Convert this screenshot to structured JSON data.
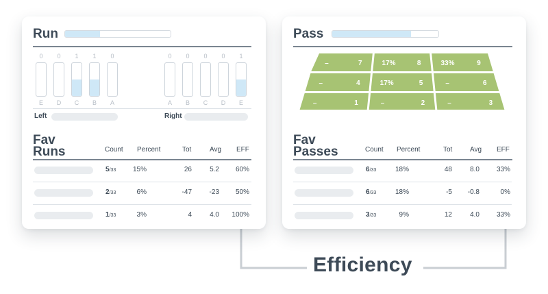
{
  "run": {
    "title": "Run",
    "bar_fill": 0.33,
    "gaps_left": [
      {
        "label": "E",
        "value": "0",
        "fill": 0
      },
      {
        "label": "D",
        "value": "0",
        "fill": 0
      },
      {
        "label": "C",
        "value": "1",
        "fill": 0.5
      },
      {
        "label": "B",
        "value": "1",
        "fill": 0.5
      },
      {
        "label": "A",
        "value": "0",
        "fill": 0
      }
    ],
    "gaps_right": [
      {
        "label": "A",
        "value": "0",
        "fill": 0
      },
      {
        "label": "B",
        "value": "0",
        "fill": 0
      },
      {
        "label": "C",
        "value": "0",
        "fill": 0
      },
      {
        "label": "D",
        "value": "0",
        "fill": 0
      },
      {
        "label": "E",
        "value": "1",
        "fill": 0.5
      }
    ],
    "left_label": "Left",
    "right_label": "Right",
    "fav_title_line1": "Fav",
    "fav_title_line2": "Runs",
    "columns": [
      "Count",
      "Percent",
      "Tot",
      "Avg",
      "EFF"
    ],
    "rows": [
      {
        "count": "5",
        "of": "/33",
        "percent": "15%",
        "tot": "26",
        "avg": "5.2",
        "eff": "60%"
      },
      {
        "count": "2",
        "of": "/33",
        "percent": "6%",
        "tot": "-47",
        "avg": "-23",
        "eff": "50%"
      },
      {
        "count": "1",
        "of": "/33",
        "percent": "3%",
        "tot": "4",
        "avg": "4.0",
        "eff": "100%"
      }
    ]
  },
  "pass": {
    "title": "Pass",
    "bar_fill": 0.74,
    "zone_color": "#a7c373",
    "zones": [
      [
        {
          "pct": "–",
          "num": "7"
        },
        {
          "pct": "17%",
          "num": "8"
        },
        {
          "pct": "33%",
          "num": "9"
        }
      ],
      [
        {
          "pct": "–",
          "num": "4"
        },
        {
          "pct": "17%",
          "num": "5"
        },
        {
          "pct": "–",
          "num": "6"
        }
      ],
      [
        {
          "pct": "–",
          "num": "1"
        },
        {
          "pct": "–",
          "num": "2"
        },
        {
          "pct": "–",
          "num": "3"
        }
      ]
    ],
    "fav_title_line1": "Fav",
    "fav_title_line2": "Passes",
    "columns": [
      "Count",
      "Percent",
      "Tot",
      "Avg",
      "EFF"
    ],
    "rows": [
      {
        "count": "6",
        "of": "/33",
        "percent": "18%",
        "tot": "48",
        "avg": "8.0",
        "eff": "33%"
      },
      {
        "count": "6",
        "of": "/33",
        "percent": "18%",
        "tot": "-5",
        "avg": "-0.8",
        "eff": "0%"
      },
      {
        "count": "3",
        "of": "/33",
        "percent": "9%",
        "tot": "12",
        "avg": "4.0",
        "eff": "33%"
      }
    ]
  },
  "footer": {
    "label": "Efficiency",
    "line_color": "#c9ced3"
  }
}
